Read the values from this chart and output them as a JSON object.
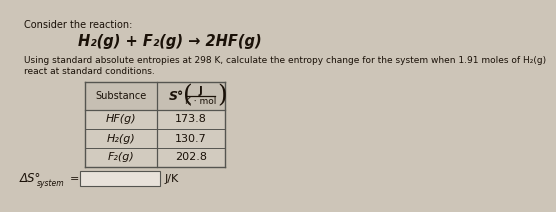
{
  "title_line1": "Consider the reaction:",
  "reaction": "H₂(g) + F₂(g) → 2HF(g)",
  "description_line1": "Using standard absolute entropies at 298 K, calculate the entropy change for the system when 1.91 moles of H₂(g)",
  "description_line2": "react at standard conditions.",
  "col_header_substance": "Substance",
  "col_header_S": "S°",
  "col_header_units_top": "J",
  "col_header_units_bot": "K ⋅ mol",
  "table_data": [
    [
      "HF(g)",
      "173.8"
    ],
    [
      "H₂(g)",
      "130.7"
    ],
    [
      "F₂(g)",
      "202.8"
    ]
  ],
  "footer_delta": "ΔS°",
  "footer_subscript": "system",
  "footer_equals": "=",
  "footer_units": "J/K",
  "bg_color": "#cdc5b8",
  "text_color": "#1a1108",
  "table_line_color": "#555550",
  "table_bg": "#d2cbbf",
  "header_bg": "#c6bfb3",
  "input_box_color": "#e8e2da"
}
